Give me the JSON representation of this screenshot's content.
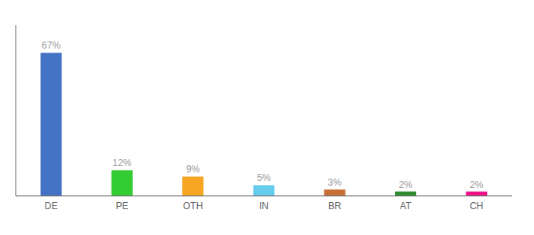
{
  "chart_data": {
    "type": "bar",
    "categories": [
      "DE",
      "PE",
      "OTH",
      "IN",
      "BR",
      "AT",
      "CH"
    ],
    "values": [
      67,
      12,
      9,
      5,
      3,
      2,
      2
    ],
    "value_labels": [
      "67%",
      "12%",
      "9%",
      "5%",
      "3%",
      "2%",
      "2%"
    ],
    "colors": [
      "#4472c4",
      "#33cc33",
      "#f5a623",
      "#66ccee",
      "#c87137",
      "#2e8b2e",
      "#ee1188"
    ],
    "ylim": [
      0,
      80
    ],
    "data_labels": true,
    "tick_labels": "x"
  }
}
